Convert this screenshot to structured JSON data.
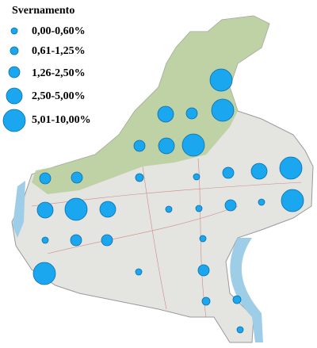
{
  "legend": {
    "title": "Svernamento",
    "entries": [
      "0,00-0,60%",
      "0,61-1,25%",
      "1,26-2,50%",
      "2,50-5,00%",
      "5,01-10,00%"
    ]
  }
}
